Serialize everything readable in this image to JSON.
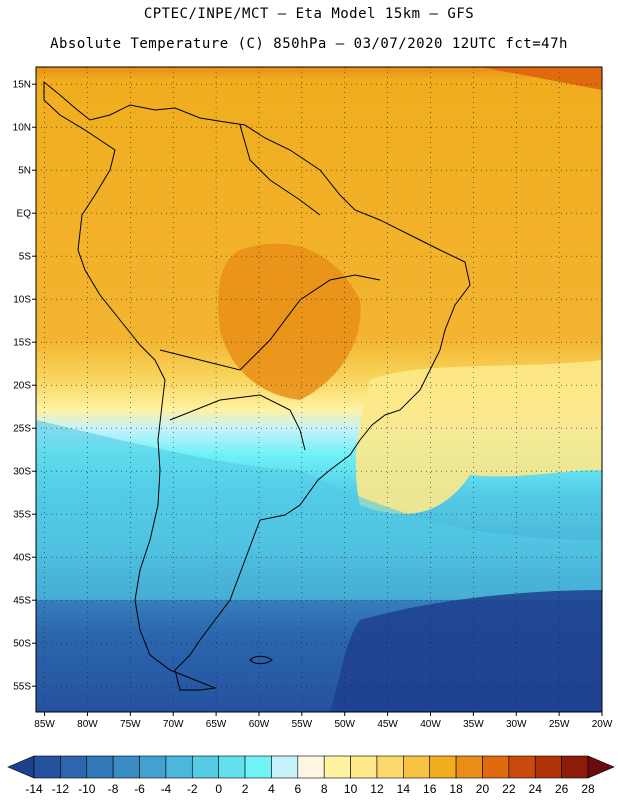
{
  "header": {
    "line1": "CPTEC/INPE/MCT –  Eta Model 15km – GFS",
    "line2": "Absolute Temperature (C) 850hPa – 03/07/2020 12UTC fct=47h"
  },
  "map": {
    "lat_labels": [
      "15N",
      "10N",
      "5N",
      "EQ",
      "5S",
      "10S",
      "15S",
      "20S",
      "25S",
      "30S",
      "35S",
      "40S",
      "45S",
      "50S",
      "55S"
    ],
    "lon_labels": [
      "85W",
      "80W",
      "75W",
      "70W",
      "65W",
      "60W",
      "55W",
      "50W",
      "45W",
      "40W",
      "35W",
      "30W",
      "25W",
      "20W"
    ],
    "extent": {
      "lon": [
        -86,
        -20
      ],
      "lat": [
        -58,
        17
      ]
    }
  },
  "colorbar": {
    "ticks": [
      "-14",
      "-12",
      "-10",
      "-8",
      "-6",
      "-4",
      "-2",
      "0",
      "2",
      "4",
      "6",
      "8",
      "10",
      "12",
      "14",
      "16",
      "18",
      "20",
      "22",
      "24",
      "26",
      "28"
    ],
    "colors": [
      "#1f3f8f",
      "#25529f",
      "#2b66ae",
      "#3279b8",
      "#3a8dc3",
      "#41a2cf",
      "#4ab7db",
      "#54cce6",
      "#62e0ef",
      "#70f2f7",
      "#c8f2fa",
      "#fff6e2",
      "#fff2a0",
      "#fde88a",
      "#fbd96c",
      "#f6c342",
      "#f0ad1e",
      "#e98e16",
      "#df6a10",
      "#c94a0c",
      "#b13309",
      "#8d1b0a",
      "#6a0b10"
    ]
  }
}
